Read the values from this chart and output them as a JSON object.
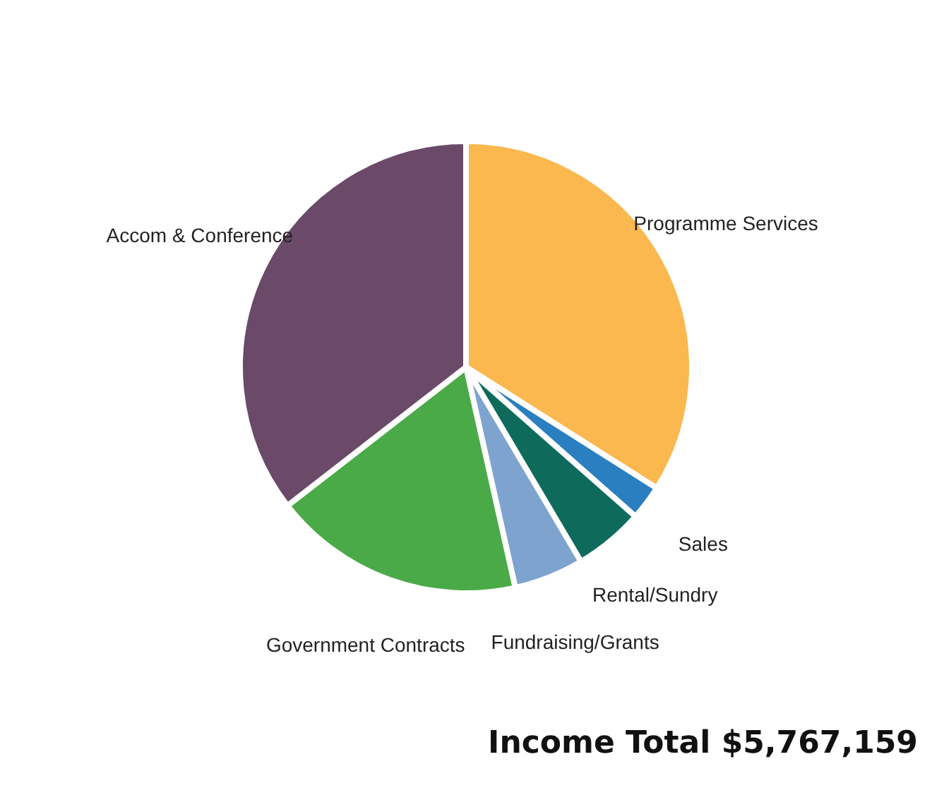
{
  "chart_data": {
    "type": "pie",
    "categories": [
      "Programme Services",
      "Sales",
      "Rental/Sundry",
      "Fundraising/Grants",
      "Government Contracts",
      "Accom & Conference"
    ],
    "values": [
      34,
      2.5,
      5,
      5,
      18,
      35.5
    ],
    "colors": [
      "#fbb84f",
      "#2a7fc0",
      "#0e6b5c",
      "#7ea3cf",
      "#4aaa47",
      "#6a4a68"
    ],
    "legend": false,
    "annotations": [
      "Income Total $5,767,159"
    ]
  }
}
